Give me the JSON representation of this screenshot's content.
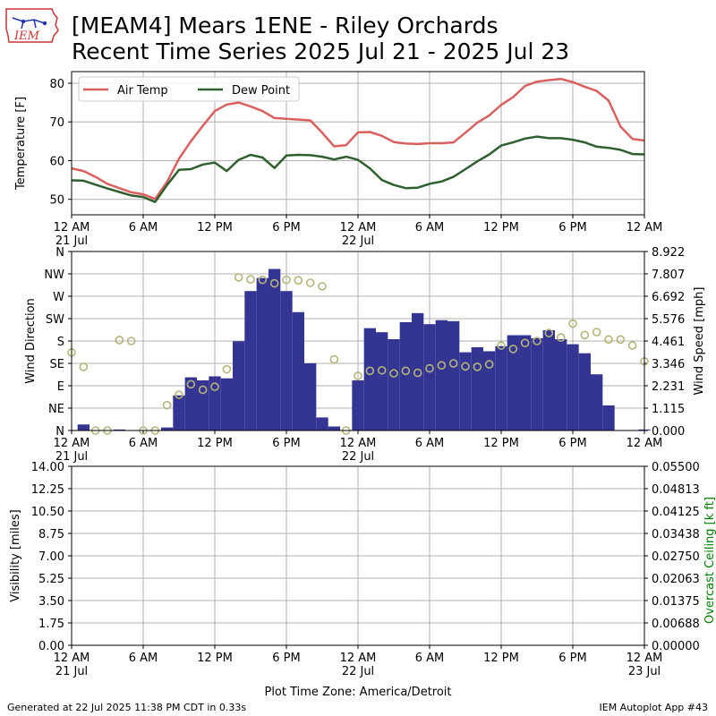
{
  "header": {
    "title_line1": "[MEAM4] Mears 1ENE - Riley Orchards",
    "title_line2": "Recent Time Series 2025 Jul 21 - 2025 Jul 23",
    "logo_text": "IEM"
  },
  "footer": {
    "generated": "Generated at 22 Jul 2025 11:38 PM CDT in 0.33s",
    "app": "IEM Autoplot App #43"
  },
  "colors": {
    "air_temp": "#d9605f",
    "dew_point": "#2f5f2f",
    "wind_speed_bars": "#343493",
    "wind_direction_markers": "#b5b57a",
    "ceiling_label": "#008000",
    "grid": "#b0b0b0"
  },
  "chart_data": [
    {
      "id": "temperature",
      "type": "line",
      "ylabel": "Temperature [F]",
      "ylim": [
        46,
        83
      ],
      "yticks": [
        50,
        60,
        70,
        80
      ],
      "grid": true,
      "legend": "top-left",
      "x_range_hours": [
        0,
        48
      ],
      "series": [
        {
          "name": "Air Temp",
          "x": [
            0,
            1,
            2,
            3,
            4,
            5,
            6,
            7,
            8,
            9,
            10,
            11,
            12,
            13,
            14,
            15,
            16,
            17,
            18,
            19,
            20,
            21,
            22,
            23,
            24,
            25,
            26,
            27,
            28,
            29,
            30,
            31,
            32,
            33,
            34,
            35,
            36,
            37,
            38,
            39,
            40,
            41,
            42,
            43,
            44,
            45,
            46,
            47,
            48
          ],
          "values": [
            58,
            57.3,
            55.8,
            54,
            52.9,
            51.8,
            51.3,
            50.1,
            54.5,
            60.5,
            65,
            69,
            72.8,
            74.5,
            75,
            74,
            72.8,
            71,
            70.8,
            70.6,
            70.4,
            67.2,
            63.7,
            64,
            67.3,
            67.4,
            66.4,
            64.8,
            64.4,
            64.3,
            64.5,
            64.5,
            64.7,
            67.2,
            69.8,
            71.7,
            74.4,
            76.4,
            79.3,
            80.4,
            80.8,
            81.1,
            80.3,
            79.1,
            78,
            75.5,
            68.8,
            65.6,
            65.2
          ]
        },
        {
          "name": "Dew Point",
          "x": [
            0,
            1,
            2,
            3,
            4,
            5,
            6,
            7,
            8,
            9,
            10,
            11,
            12,
            13,
            14,
            15,
            16,
            17,
            18,
            19,
            20,
            21,
            22,
            23,
            24,
            25,
            26,
            27,
            28,
            29,
            30,
            31,
            32,
            33,
            34,
            35,
            36,
            37,
            38,
            39,
            40,
            41,
            42,
            43,
            44,
            45,
            46,
            47,
            48
          ],
          "values": [
            54.9,
            54.8,
            53.8,
            52.8,
            51.9,
            51,
            50.6,
            49.3,
            53.7,
            57.6,
            57.8,
            59,
            59.5,
            57.3,
            60.2,
            61.5,
            60.8,
            58.1,
            61.3,
            61.5,
            61.4,
            61,
            60.3,
            61,
            60.2,
            58,
            55,
            53.7,
            52.9,
            53,
            54,
            54.6,
            55.8,
            57.8,
            59.8,
            61.6,
            63.9,
            64.7,
            65.7,
            66.2,
            65.8,
            65.8,
            65.4,
            64.7,
            63.6,
            63.3,
            62.8,
            61.7,
            61.6
          ]
        }
      ]
    },
    {
      "id": "wind",
      "type": "bar",
      "ylabel": "Wind Direction",
      "y2label": "Wind Speed [mph]",
      "direction_ticks": [
        "N",
        "NE",
        "E",
        "SE",
        "S",
        "SW",
        "W",
        "NW",
        "N"
      ],
      "direction_ylim": [
        0,
        360
      ],
      "speed_ticks": [
        "0.000",
        "1.115",
        "2.231",
        "3.346",
        "4.461",
        "5.576",
        "6.692",
        "7.807",
        "8.922"
      ],
      "speed_ylim": [
        0,
        8.922
      ],
      "grid": true,
      "x_range_hours": [
        0,
        48
      ],
      "speed_bars": {
        "bar_width_hours": 1,
        "x_start": [
          0.5,
          1.5,
          2.5,
          3.5,
          4.5,
          5.5,
          6.5,
          7.5,
          8.5,
          9.5,
          10.5,
          11.5,
          12.5,
          13.5,
          14.5,
          15.5,
          16.5,
          17.5,
          18.5,
          19.5,
          20.5,
          21.5,
          22.5,
          23.5,
          24.5,
          25.5,
          26.5,
          27.5,
          28.5,
          29.5,
          30.5,
          31.5,
          32.5,
          33.5,
          34.5,
          35.5,
          36.5,
          37.5,
          38.5,
          39.5,
          40.5,
          41.5,
          42.5,
          43.5,
          44.5,
          45.5,
          46.5,
          47.5
        ],
        "values": [
          0.3,
          0,
          0,
          0.05,
          0,
          0,
          0,
          0.15,
          1.75,
          2.65,
          2.5,
          2.7,
          2.6,
          4.45,
          6.95,
          7.6,
          8.05,
          6.95,
          5.9,
          3.35,
          0.65,
          0.2,
          0,
          2.5,
          5.1,
          4.9,
          4.55,
          5.4,
          5.85,
          5.3,
          5.5,
          5.45,
          3.9,
          4.15,
          3.95,
          4.2,
          4.75,
          4.75,
          4.6,
          5.0,
          4.55,
          4.3,
          3.85,
          2.8,
          1.25,
          0,
          0,
          0.05
        ]
      },
      "direction_points": {
        "x": [
          0,
          1,
          2,
          3,
          4,
          5,
          6,
          7,
          8,
          9,
          10,
          11,
          12,
          13,
          14,
          15,
          16,
          17,
          18,
          19,
          20,
          21,
          22,
          23,
          24,
          25,
          26,
          27,
          28,
          29,
          30,
          31,
          32,
          33,
          34,
          35,
          36,
          37,
          38,
          39,
          40,
          41,
          42,
          43,
          44,
          45,
          46,
          47,
          48
        ],
        "values": [
          157,
          128,
          0,
          0,
          182,
          180,
          0,
          0,
          51,
          72,
          93,
          82,
          88,
          123,
          308,
          304,
          303,
          296,
          303,
          302,
          297,
          290,
          143,
          0,
          110,
          120,
          121,
          115,
          120,
          116,
          125,
          131,
          135,
          129,
          128,
          133,
          171,
          164,
          176,
          180,
          196,
          187,
          215,
          192,
          198,
          183,
          183,
          171,
          139
        ]
      }
    },
    {
      "id": "visibility",
      "type": "line",
      "ylabel": "Visibility [miles]",
      "y2label": "Overcast Ceiling [k ft]",
      "yticks": [
        "0.00",
        "1.75",
        "3.50",
        "5.25",
        "7.00",
        "8.75",
        "10.50",
        "12.25",
        "14.00"
      ],
      "ylim": [
        0,
        14
      ],
      "y2ticks": [
        "0.00000",
        "0.00688",
        "0.01375",
        "0.02063",
        "0.02750",
        "0.03438",
        "0.04125",
        "0.04813",
        "0.05500"
      ],
      "y2lim": [
        0,
        0.055
      ],
      "grid": true,
      "x_range_hours": [
        0,
        48
      ],
      "series": []
    }
  ],
  "x_axis": {
    "tick_hours": [
      0,
      6,
      12,
      18,
      24,
      30,
      36,
      42,
      48
    ],
    "tick_labels": [
      "12 AM",
      "6 AM",
      "12 PM",
      "6 PM",
      "12 AM",
      "6 AM",
      "12 PM",
      "6 PM",
      "12 AM"
    ],
    "date_labels_top": [
      {
        "hour": 0,
        "label": "21 Jul"
      },
      {
        "hour": 24,
        "label": "22 Jul"
      }
    ],
    "date_labels_mid": [
      {
        "hour": 0,
        "label": "21 Jul"
      },
      {
        "hour": 24,
        "label": "22 Jul"
      }
    ],
    "date_labels_bottom": [
      {
        "hour": 0,
        "label": "21 Jul"
      },
      {
        "hour": 24,
        "label": "22 Jul"
      },
      {
        "hour": 48,
        "label": "23 Jul"
      }
    ],
    "xlabel": "Plot Time Zone: America/Detroit"
  }
}
